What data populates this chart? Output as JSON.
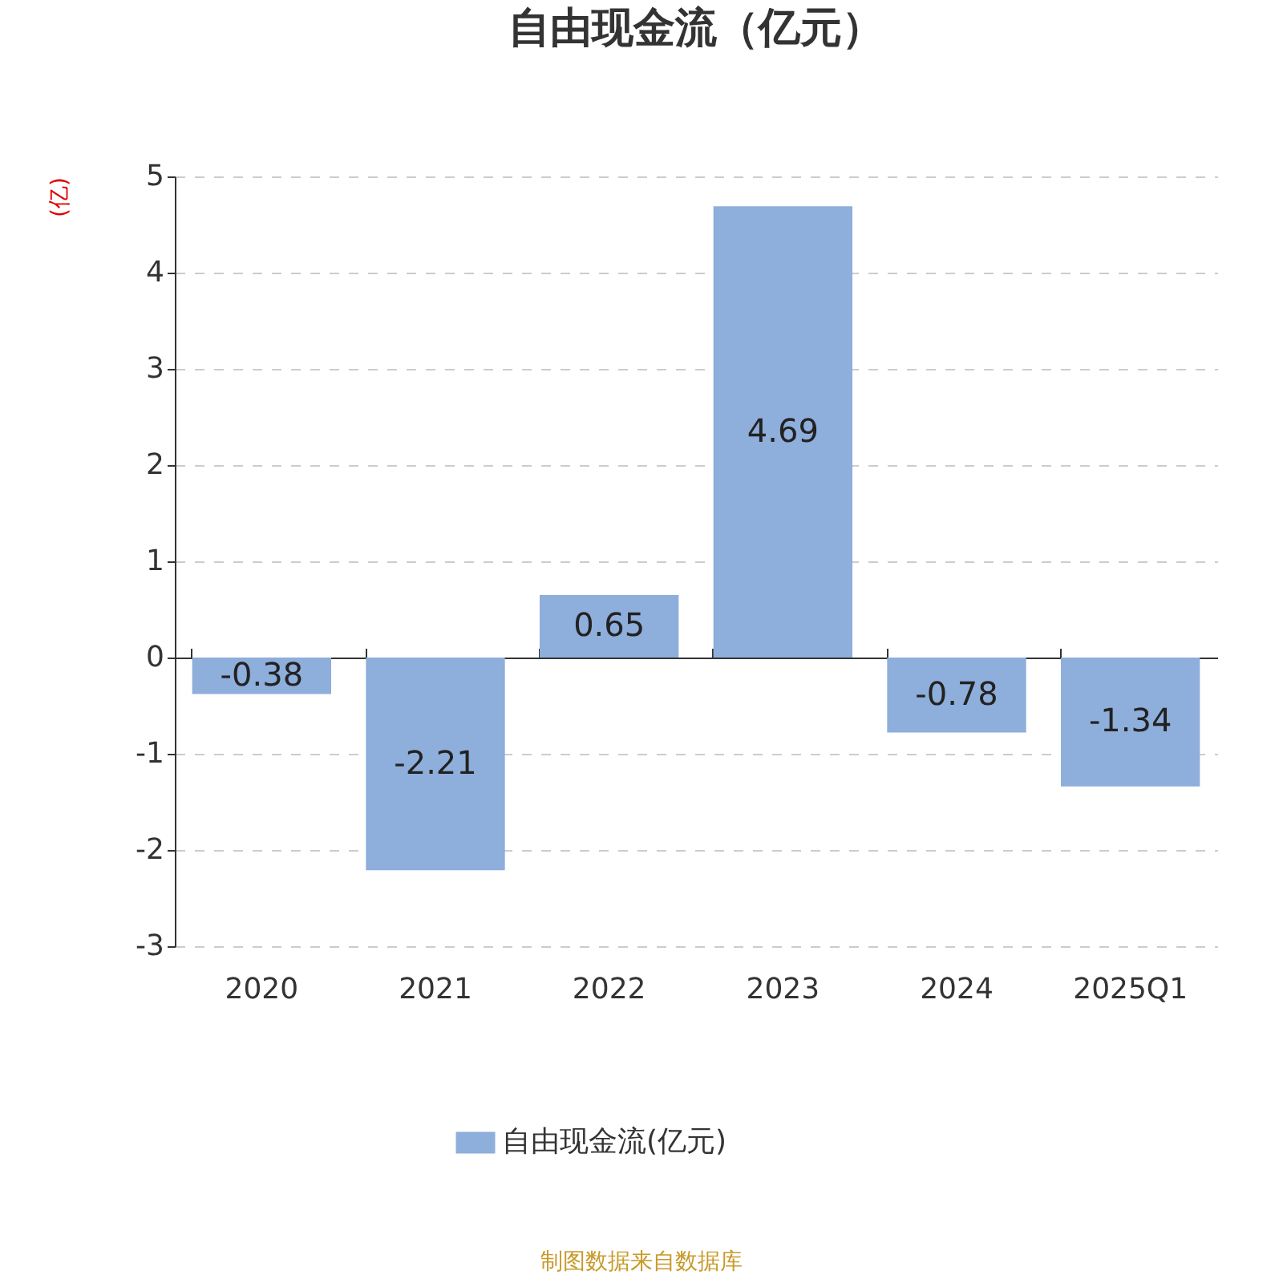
{
  "chart_data": {
    "type": "bar",
    "title": "自由现金流（亿元）",
    "ylabel": "(亿)",
    "categories": [
      "2020",
      "2021",
      "2022",
      "2023",
      "2024",
      "2025Q1"
    ],
    "series": [
      {
        "name": "自由现金流(亿元)",
        "color": "#8eaedb",
        "values": [
          -0.38,
          -2.21,
          0.65,
          4.69,
          -0.78,
          -1.34
        ]
      }
    ],
    "ylim": [
      -3,
      5
    ],
    "yticks": [
      -3,
      -2,
      -1,
      0,
      1,
      2,
      3,
      4,
      5
    ],
    "grid": "y",
    "legend": "bottom",
    "data_labels": true,
    "annotations": [
      "制图数据来自数据库"
    ]
  }
}
